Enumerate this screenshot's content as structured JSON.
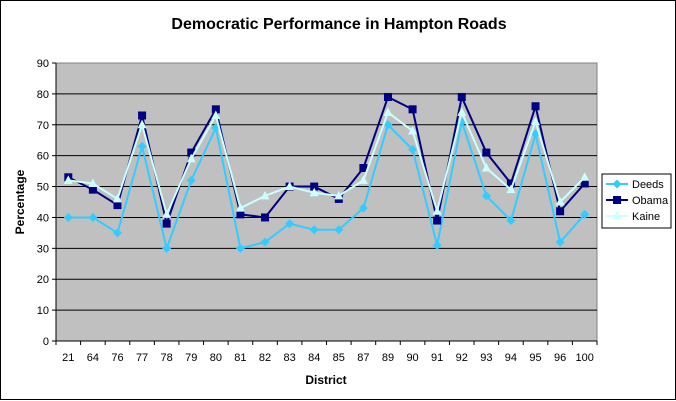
{
  "chart_data": {
    "type": "line",
    "title": "Democratic Performance in Hampton Roads",
    "xlabel": "District",
    "ylabel": "Percentage",
    "ylim": [
      0,
      90
    ],
    "ytick_step": 10,
    "grid": true,
    "legend_position": "right",
    "plot_background": "#c0c0c0",
    "categories": [
      "21",
      "64",
      "76",
      "77",
      "78",
      "79",
      "80",
      "81",
      "82",
      "83",
      "84",
      "85",
      "87",
      "89",
      "90",
      "91",
      "92",
      "93",
      "94",
      "95",
      "96",
      "100"
    ],
    "series": [
      {
        "name": "Deeds",
        "color": "#33ccff",
        "marker": "diamond",
        "values": [
          40,
          40,
          35,
          63,
          30,
          52,
          69,
          30,
          32,
          38,
          36,
          36,
          43,
          70,
          62,
          31,
          71,
          47,
          39,
          67,
          32,
          41
        ]
      },
      {
        "name": "Obama",
        "color": "#000080",
        "marker": "square",
        "values": [
          53,
          49,
          44,
          73,
          38,
          61,
          75,
          41,
          40,
          50,
          50,
          46,
          56,
          79,
          75,
          39,
          79,
          61,
          51,
          76,
          42,
          51
        ]
      },
      {
        "name": "Kaine",
        "color": "#ccffff",
        "marker": "triangle",
        "values": [
          52,
          51,
          46,
          70,
          41,
          59,
          73,
          43,
          47,
          50,
          48,
          47,
          52,
          74,
          68,
          42,
          74,
          56,
          49,
          71,
          45,
          53
        ]
      }
    ]
  }
}
